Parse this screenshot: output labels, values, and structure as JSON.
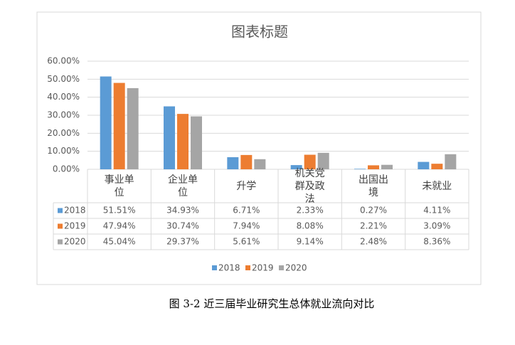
{
  "chart_data": {
    "type": "bar",
    "title": "图表标题",
    "caption": "图 3-2 近三届毕业研究生总体就业流向对比",
    "categories": [
      "事业单位",
      "企业单位",
      "升学",
      "机关党群及政法",
      "出国出境",
      "未就业"
    ],
    "series": [
      {
        "name": "2018",
        "color": "#5b9bd5",
        "values": [
          51.51,
          34.93,
          6.71,
          2.33,
          0.27,
          4.11
        ],
        "value_labels": [
          "51.51%",
          "34.93%",
          "6.71%",
          "2.33%",
          "0.27%",
          "4.11%"
        ]
      },
      {
        "name": "2019",
        "color": "#ed7d31",
        "values": [
          47.94,
          30.74,
          7.94,
          8.08,
          2.21,
          3.09
        ],
        "value_labels": [
          "47.94%",
          "30.74%",
          "7.94%",
          "8.08%",
          "2.21%",
          "3.09%"
        ]
      },
      {
        "name": "2020",
        "color": "#a5a5a5",
        "values": [
          45.04,
          29.37,
          5.61,
          9.14,
          2.48,
          8.36
        ],
        "value_labels": [
          "45.04%",
          "29.37%",
          "5.61%",
          "9.14%",
          "2.48%",
          "8.36%"
        ]
      }
    ],
    "ylim": [
      0,
      60
    ],
    "yticks": [
      {
        "value": 0,
        "label": "0.00%"
      },
      {
        "value": 10,
        "label": "10.00%"
      },
      {
        "value": 20,
        "label": "20.00%"
      },
      {
        "value": 30,
        "label": "30.00%"
      },
      {
        "value": 40,
        "label": "40.00%"
      },
      {
        "value": 50,
        "label": "50.00%"
      },
      {
        "value": 60,
        "label": "60.00%"
      }
    ],
    "grid": true
  }
}
